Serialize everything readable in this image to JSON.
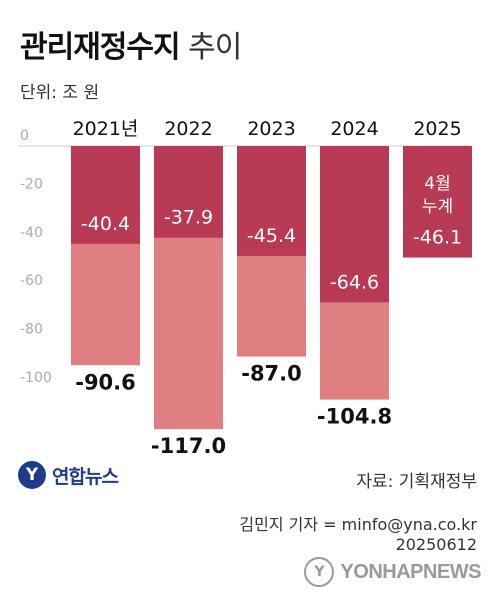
{
  "header": {
    "title_main": "관리재정수지",
    "title_sub": "추이",
    "unit": "단위: 조 원"
  },
  "chart_data": {
    "type": "bar",
    "categories": [
      "2021년",
      "2022",
      "2023",
      "2024",
      "2025"
    ],
    "series": [
      {
        "values": [
          -90.6,
          -117.0,
          -87.0,
          -104.8,
          null
        ]
      },
      {
        "values": [
          -40.4,
          -37.9,
          -45.4,
          -64.6,
          -46.1
        ]
      }
    ],
    "total_labels": [
      "-90.6",
      "-117.0",
      "-87.0",
      "-104.8",
      ""
    ],
    "partial_labels": [
      "-40.4",
      "-37.9",
      "-45.4",
      "-64.6",
      "-46.1"
    ],
    "partial_note": {
      "category": "2025",
      "lines": [
        "4월",
        "누계"
      ]
    },
    "y_ticks": [
      "0",
      "-20",
      "-40",
      "-60",
      "-80",
      "-100"
    ],
    "ylim": [
      -120,
      0
    ],
    "colors": {
      "partial": "#b83a55",
      "total": "#e07f82",
      "axis_text": "#aaaaaa"
    }
  },
  "footer": {
    "logo_text": "연합뉴스",
    "source": "자료: 기획재정부",
    "credit_line1": "김민지 기자 = minfo@yna.co.kr",
    "credit_line2": "20250612",
    "watermark": "YONHAPNEWS"
  }
}
